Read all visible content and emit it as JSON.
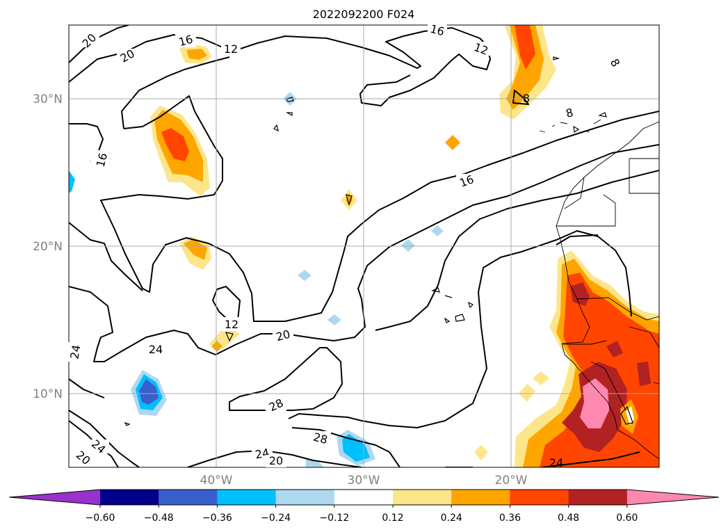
{
  "title": "2022092200 F024",
  "lat_labels": [
    "30°N",
    "20°N",
    "10°N"
  ],
  "lon_labels": [
    "40°W",
    "30°W",
    "20°W"
  ],
  "contour_labels": [
    "20",
    "20",
    "16",
    "12",
    "16",
    "12",
    "8",
    "8",
    "8",
    "16",
    "16",
    "24",
    "24",
    "12",
    "20",
    "28",
    "28",
    "24",
    "20",
    "24",
    "20",
    "24"
  ],
  "colorbar": {
    "ticks": [
      "−0.60",
      "−0.48",
      "−0.36",
      "−0.24",
      "−0.12",
      "0.12",
      "0.24",
      "0.36",
      "0.48",
      "0.60"
    ],
    "colors": [
      "#9932cc",
      "#00008b",
      "#3a5fcd",
      "#00bfff",
      "#add8f0",
      "#ffffff",
      "#fde68a",
      "#ffa500",
      "#ff4500",
      "#b22222",
      "#ff88b0"
    ]
  }
}
